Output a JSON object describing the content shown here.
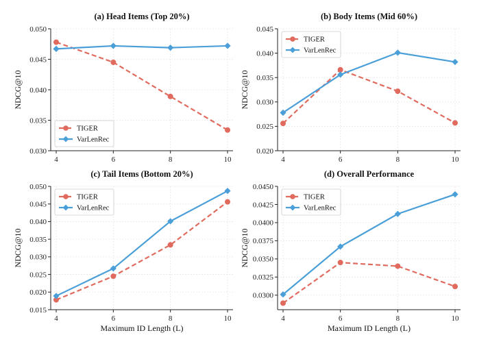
{
  "colors": {
    "tiger": "#e06a5d",
    "varlenrec": "#4a9fd8"
  },
  "chart_data": [
    {
      "type": "line",
      "title": "(a) Head Items (Top 20%)",
      "xlabel": "",
      "ylabel": "NDCG@10",
      "x": [
        4,
        6,
        8,
        10
      ],
      "xticks": [
        "4",
        "6",
        "8",
        "10"
      ],
      "ylim": [
        0.03,
        0.05
      ],
      "yticks": [
        "0.030",
        "0.035",
        "0.040",
        "0.045",
        "0.050"
      ],
      "legend": "bottom-left",
      "series": [
        {
          "name": "TIGER",
          "values": [
            0.0478,
            0.0445,
            0.0389,
            0.0334
          ]
        },
        {
          "name": "VarLenRec",
          "values": [
            0.0467,
            0.0472,
            0.0469,
            0.0472
          ]
        }
      ]
    },
    {
      "type": "line",
      "title": "(b) Body Items (Mid 60%)",
      "xlabel": "",
      "ylabel": "NDCG@10",
      "x": [
        4,
        6,
        8,
        10
      ],
      "xticks": [
        "4",
        "6",
        "8",
        "10"
      ],
      "ylim": [
        0.02,
        0.045
      ],
      "yticks": [
        "0.020",
        "0.025",
        "0.030",
        "0.035",
        "0.040",
        "0.045"
      ],
      "legend": "top-left",
      "series": [
        {
          "name": "TIGER",
          "values": [
            0.0256,
            0.0366,
            0.0322,
            0.0257
          ]
        },
        {
          "name": "VarLenRec",
          "values": [
            0.0278,
            0.0356,
            0.0401,
            0.0382
          ]
        }
      ]
    },
    {
      "type": "line",
      "title": "(c) Tail Items (Bottom 20%)",
      "xlabel": "Maximum ID Length (L)",
      "ylabel": "NDCG@10",
      "x": [
        4,
        6,
        8,
        10
      ],
      "xticks": [
        "4",
        "6",
        "8",
        "10"
      ],
      "ylim": [
        0.015,
        0.05
      ],
      "yticks": [
        "0.015",
        "0.020",
        "0.025",
        "0.030",
        "0.035",
        "0.040",
        "0.045",
        "0.050"
      ],
      "legend": "top-left",
      "series": [
        {
          "name": "TIGER",
          "values": [
            0.0178,
            0.0245,
            0.0334,
            0.0456
          ]
        },
        {
          "name": "VarLenRec",
          "values": [
            0.0189,
            0.0267,
            0.0401,
            0.0487
          ]
        }
      ]
    },
    {
      "type": "line",
      "title": "(d) Overall Performance",
      "xlabel": "Maximum ID Length (L)",
      "ylabel": "NDCG@10",
      "x": [
        4,
        6,
        8,
        10
      ],
      "xticks": [
        "4",
        "6",
        "8",
        "10"
      ],
      "ylim": [
        0.028,
        0.045
      ],
      "yticks": [
        "0.0300",
        "0.0325",
        "0.0350",
        "0.0375",
        "0.0400",
        "0.0425",
        "0.0450"
      ],
      "legend": "top-left",
      "series": [
        {
          "name": "TIGER",
          "values": [
            0.0289,
            0.0345,
            0.034,
            0.0312
          ]
        },
        {
          "name": "VarLenRec",
          "values": [
            0.0301,
            0.0367,
            0.0412,
            0.0439
          ]
        }
      ]
    }
  ]
}
